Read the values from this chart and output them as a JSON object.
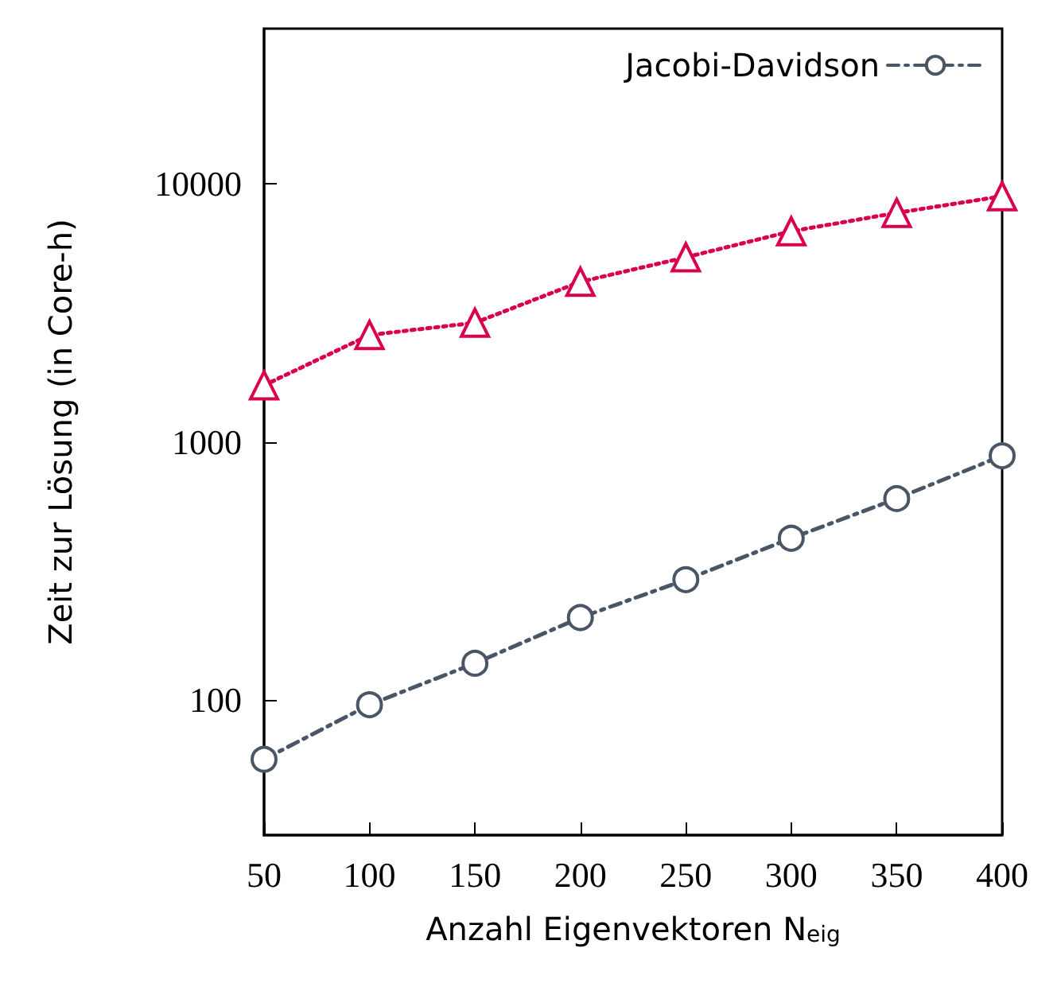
{
  "chart_data": {
    "type": "line",
    "xlabel": "Anzahl Eigenvektoren N$_{eig}$",
    "ylabel": "Zeit zur Lösung (in Core-h)",
    "x": [
      50,
      100,
      150,
      200,
      250,
      300,
      350,
      400
    ],
    "series": [
      {
        "color": "#d9004f",
        "marker": "triangle",
        "line_style": "dotted",
        "values": [
          1660,
          2600,
          2900,
          4180,
          5200,
          6560,
          7730,
          8970
        ]
      },
      {
        "name": "Jacobi-Davidson",
        "color": "#4a5566",
        "marker": "circle",
        "line_style": "dashed",
        "values": [
          59,
          96,
          139,
          209,
          293,
          424,
          604,
          885
        ]
      }
    ],
    "xlim": [
      50,
      400
    ],
    "xticks": [
      50,
      100,
      150,
      200,
      250,
      300,
      350,
      400
    ],
    "ylim": [
      30,
      40000
    ],
    "yticks": [
      100,
      1000,
      10000
    ],
    "log": true,
    "grid": false,
    "legend": "top right"
  }
}
